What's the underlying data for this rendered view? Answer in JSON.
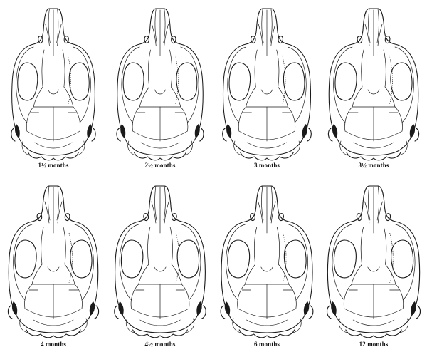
{
  "figure": {
    "skulls": [
      {
        "label": "1½ months"
      },
      {
        "label": "2½ months"
      },
      {
        "label": "3 months"
      },
      {
        "label": "3½ months"
      },
      {
        "label": "4 months"
      },
      {
        "label": "4½ months"
      },
      {
        "label": "6 months"
      },
      {
        "label": "12 months"
      }
    ]
  }
}
